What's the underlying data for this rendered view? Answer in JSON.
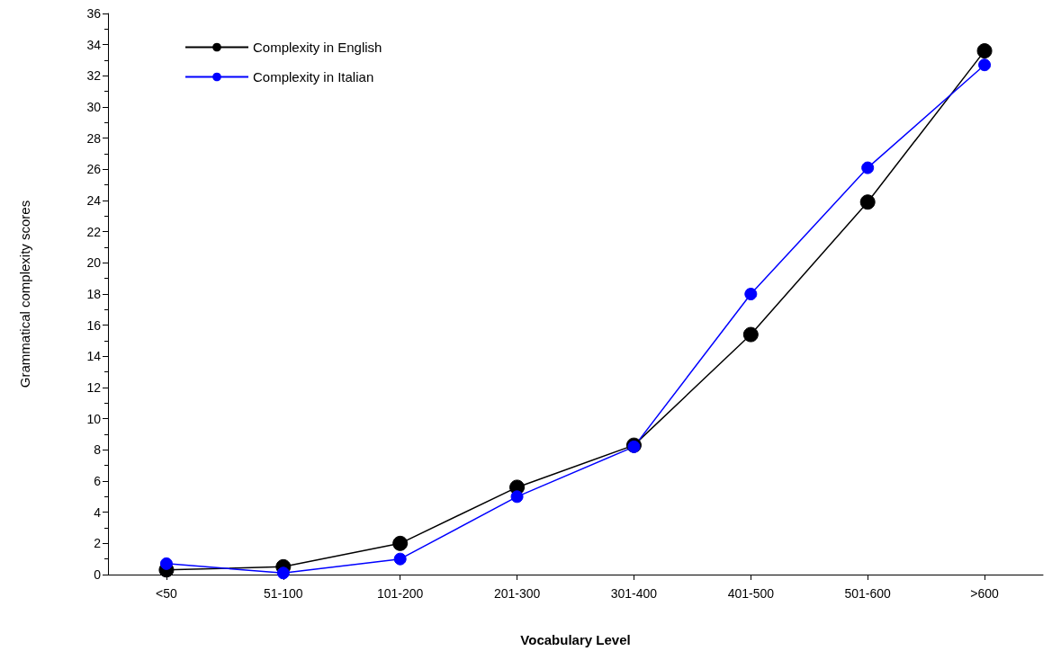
{
  "chart_data": {
    "type": "line",
    "xlabel": "Vocabulary Level",
    "ylabel": "Grammatical complexity scores",
    "categories": [
      "<50",
      "51-100",
      "101-200",
      "201-300",
      "301-400",
      "401-500",
      "501-600",
      ">600"
    ],
    "series": [
      {
        "name": "Complexity in English",
        "color": "#000000",
        "values": [
          0.3,
          0.5,
          2.0,
          5.6,
          8.3,
          15.4,
          23.9,
          33.6
        ]
      },
      {
        "name": "Complexity in Italian",
        "color": "#0000ff",
        "values": [
          0.7,
          0.1,
          1.0,
          5.0,
          8.2,
          18.0,
          26.1,
          32.7
        ]
      }
    ],
    "ylim": [
      0,
      36
    ],
    "yticks": [
      0,
      2,
      4,
      6,
      8,
      10,
      12,
      14,
      16,
      18,
      20,
      22,
      24,
      26,
      28,
      30,
      32,
      34,
      36
    ],
    "grid": false,
    "legend": "top left",
    "marker": "circle",
    "line_style": "solid"
  }
}
